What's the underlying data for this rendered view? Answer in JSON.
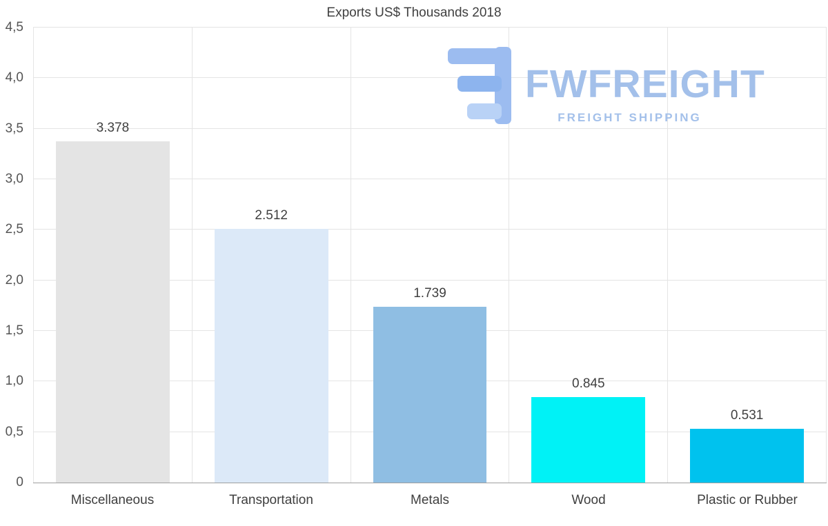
{
  "chart_data": {
    "type": "bar",
    "title": "Exports US$ Thousands 2018",
    "categories": [
      "Miscellaneous",
      "Transportation",
      "Metals",
      "Wood",
      "Plastic or Rubber"
    ],
    "values": [
      3.378,
      2.512,
      1.739,
      0.845,
      0.531
    ],
    "value_labels": [
      "3.378",
      "2.512",
      "1.739",
      "0.845",
      "0.531"
    ],
    "bar_colors": [
      "#e4e4e4",
      "#dce9f8",
      "#8fbee3",
      "#00f2f6",
      "#00c2ee"
    ],
    "xlabel": "",
    "ylabel": "",
    "ylim": [
      0,
      4.5
    ],
    "y_tick_values": [
      0,
      0.5,
      1,
      1.5,
      2,
      2.5,
      3,
      3.5,
      4,
      4.5
    ],
    "y_tick_labels": [
      "0",
      "0,5",
      "1,0",
      "1,5",
      "2,0",
      "2,5",
      "3,0",
      "3,5",
      "4,0",
      "4,5"
    ],
    "grid": "both",
    "legend": "none"
  },
  "watermark": {
    "brand": "FWFREIGHT",
    "tagline": "FREIGHT SHIPPING",
    "color": "#a3c0ea",
    "icon": "fwfreight-logo-icon"
  },
  "colors": {
    "background": "#ffffff",
    "gridline": "#e4e4e4",
    "axis_line": "#9e9e9e",
    "title_text": "#3f3f3f",
    "tick_text": "#545454",
    "value_text": "#3f3f3f"
  }
}
